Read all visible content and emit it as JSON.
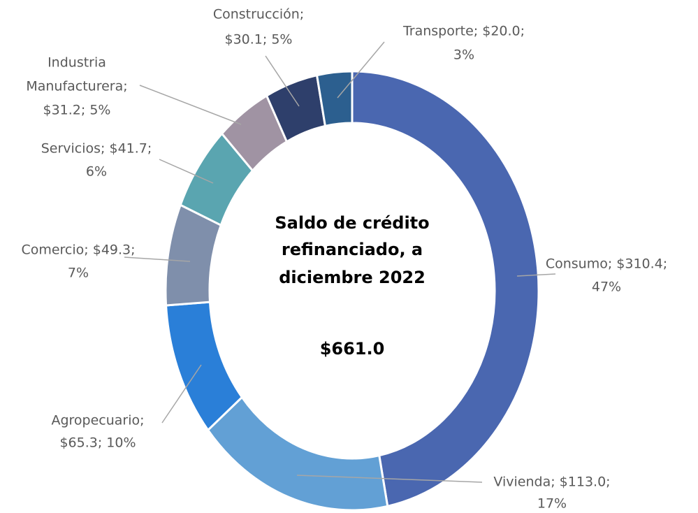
{
  "chart_data": {
    "type": "donut",
    "values": [
      310.4,
      113.0,
      65.3,
      49.3,
      41.7,
      31.2,
      30.1,
      20.0
    ],
    "colors": [
      "#4a67b0",
      "#62a0d5",
      "#2a7fd8",
      "#7f8fab",
      "#5aa5b0",
      "#a093a3",
      "#2e3f6b",
      "#2c5f8f"
    ],
    "labels": [
      [
        "Consumo; $310.4;",
        "47%"
      ],
      [
        "Vivienda; $113.0;",
        "17%"
      ],
      [
        "Agropecuario;",
        "$65.3; 10%"
      ],
      [
        "Comercio; $49.3;",
        "7%"
      ],
      [
        "Servicios; $41.7;",
        "6%"
      ],
      [
        "Industria",
        "Manufacturera;",
        "$31.2; 5%"
      ],
      [
        "Construcción;",
        "$30.1; 5%"
      ],
      [
        "Transporte; $20.0;",
        "3%"
      ]
    ],
    "center_title": [
      "Saldo de crédito",
      "refinanciado, a",
      "diciembre 2022"
    ],
    "total": {
      "value": 661.0,
      "label": "$661.0"
    }
  }
}
